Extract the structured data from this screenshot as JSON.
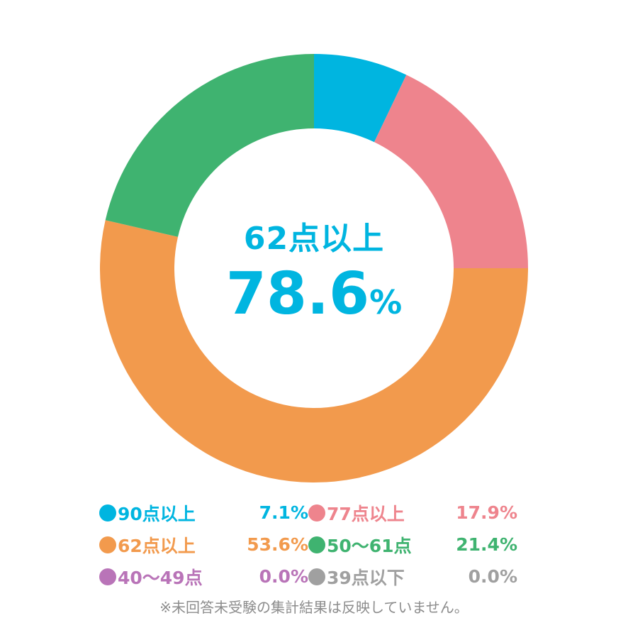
{
  "chart_data": {
    "type": "pie",
    "variant": "donut",
    "slices": [
      {
        "label": "90点以上",
        "value": 7.1,
        "display": "7.1%",
        "color": "#00b5e0"
      },
      {
        "label": "77点以上",
        "value": 17.9,
        "display": "17.9%",
        "color": "#ee848d"
      },
      {
        "label": "62点以上",
        "value": 53.6,
        "display": "53.6%",
        "color": "#f29a4d"
      },
      {
        "label": "50～61点",
        "value": 21.4,
        "display": "21.4%",
        "color": "#3fb370"
      },
      {
        "label": "40～49点",
        "value": 0.0,
        "display": "0.0%",
        "color": "#b974b8"
      },
      {
        "label": "39点以下",
        "value": 0.0,
        "display": "0.0%",
        "color": "#a0a0a0"
      }
    ],
    "center": {
      "title": "62点以上",
      "value": "78.6",
      "unit": "%"
    },
    "legend_placement": "bottom",
    "footnote": "※未回答未受験の集計結果は反映していません。"
  }
}
